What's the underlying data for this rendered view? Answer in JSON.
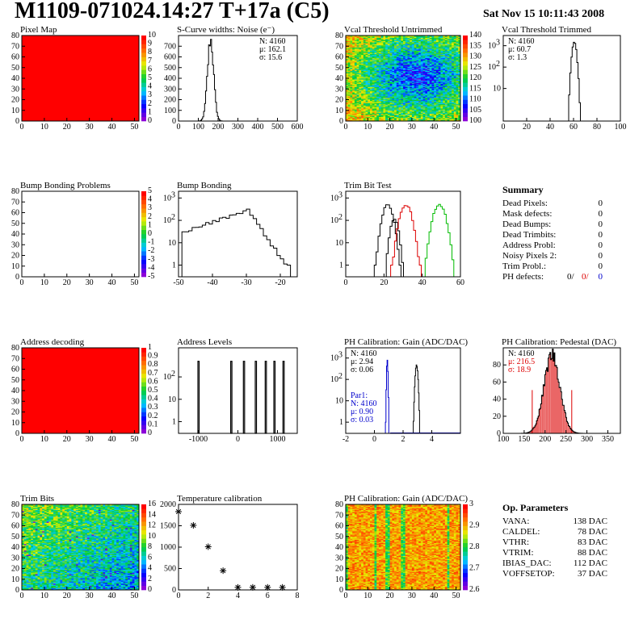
{
  "header": {
    "title": "M1109-071024.14:27 T+17a (C5)",
    "date": "Sat Nov 15 10:11:43 2008"
  },
  "colors": {
    "black": "#000000",
    "red": "#dd0000",
    "green": "#00bb00",
    "blue": "#0000cc"
  },
  "summary": {
    "title": "Summary",
    "rows": [
      {
        "label": "Dead Pixels:",
        "value": "0"
      },
      {
        "label": "Mask defects:",
        "value": "0"
      },
      {
        "label": "Dead Bumps:",
        "value": "0"
      },
      {
        "label": "Dead Trimbits:",
        "value": "0"
      },
      {
        "label": "Address Probl:",
        "value": "0"
      },
      {
        "label": "Noisy Pixels 2:",
        "value": "0"
      },
      {
        "label": "Trim Probl.:",
        "value": "0"
      }
    ],
    "ph_label": "PH defects:",
    "ph_values": [
      "0/",
      "0/",
      "0"
    ]
  },
  "op_params": {
    "title": "Op. Parameters",
    "rows": [
      {
        "label": "VANA:",
        "value": "138 DAC"
      },
      {
        "label": "CALDEL:",
        "value": "78 DAC"
      },
      {
        "label": "VTHR:",
        "value": "83 DAC"
      },
      {
        "label": "VTRIM:",
        "value": "88 DAC"
      },
      {
        "label": "IBIAS_DAC:",
        "value": "112 DAC"
      },
      {
        "label": "VOFFSETOP:",
        "value": "37 DAC"
      }
    ]
  },
  "chart_data": [
    {
      "id": "pixel-map",
      "type": "heatmap",
      "title": "Pixel Map",
      "xlim": [
        0,
        52
      ],
      "ylim": [
        0,
        80
      ],
      "xticks": [
        0,
        10,
        20,
        30,
        40,
        50
      ],
      "yticks": [
        0,
        10,
        20,
        30,
        40,
        50,
        60,
        70,
        80
      ],
      "fill": "uniform",
      "zlim": [
        0,
        10
      ],
      "zticks": [
        0,
        1,
        2,
        3,
        4,
        5,
        6,
        7,
        8,
        9,
        10
      ]
    },
    {
      "id": "scurve",
      "type": "histogram",
      "title": "S-Curve widths: Noise (e⁻)",
      "xlim": [
        0,
        600
      ],
      "ylim": [
        0,
        800
      ],
      "logy": false,
      "xticks": [
        0,
        100,
        200,
        300,
        400,
        500,
        600
      ],
      "yticks": [
        0,
        100,
        200,
        300,
        400,
        500,
        600,
        700
      ],
      "stats": [
        "N: 4160",
        "μ: 162.1",
        "σ: 15.6"
      ],
      "series": [
        {
          "color": "#000000",
          "shape": "gauss",
          "mean": 162,
          "sigma": 15.6,
          "peak": 760,
          "bin": 5
        }
      ]
    },
    {
      "id": "vcal-untrimmed",
      "type": "heatmap",
      "title": "Vcal Threshold Untrimmed",
      "xlim": [
        0,
        52
      ],
      "ylim": [
        0,
        80
      ],
      "xticks": [
        0,
        10,
        20,
        30,
        40,
        50
      ],
      "yticks": [
        0,
        10,
        20,
        30,
        40,
        50,
        60,
        70,
        80
      ],
      "fill": "untrimmed",
      "zlim": [
        100,
        140
      ],
      "zticks": [
        100,
        105,
        110,
        115,
        120,
        125,
        130,
        135,
        140
      ]
    },
    {
      "id": "vcal-trimmed",
      "type": "histogram",
      "title": "Vcal Threshold Trimmed",
      "xlim": [
        0,
        100
      ],
      "ylim": [
        0.3,
        3000
      ],
      "logy": true,
      "xticks": [
        0,
        20,
        40,
        60,
        80,
        100
      ],
      "yticks": [
        10,
        100,
        1000
      ],
      "stats": [
        "N: 4160",
        "μ: 60.7",
        "σ:  1.3"
      ],
      "series": [
        {
          "color": "#000000",
          "shape": "gauss",
          "mean": 60.7,
          "sigma": 1.3,
          "peak": 1400,
          "bin": 1
        }
      ]
    },
    {
      "id": "bump-problems",
      "type": "heatmap",
      "title": "Bump Bonding Problems",
      "xlim": [
        0,
        52
      ],
      "ylim": [
        0,
        80
      ],
      "xticks": [
        0,
        10,
        20,
        30,
        40,
        50
      ],
      "yticks": [
        0,
        10,
        20,
        30,
        40,
        50,
        60,
        70,
        80
      ],
      "fill": "empty",
      "zlim": [
        -5,
        5
      ],
      "zticks": [
        -5,
        -4,
        -3,
        -2,
        -1,
        0,
        1,
        2,
        3,
        4,
        5
      ]
    },
    {
      "id": "bump-bonding",
      "type": "histogram",
      "title": "Bump Bonding",
      "xlim": [
        -50,
        -15
      ],
      "ylim": [
        0.3,
        2000
      ],
      "logy": true,
      "xticks": [
        -50,
        -40,
        -30,
        -20
      ],
      "yticks": [
        1,
        10,
        100,
        1000
      ],
      "series": [
        {
          "color": "#000000",
          "shape": "bump",
          "bin": 1
        }
      ]
    },
    {
      "id": "trim-bit-test",
      "type": "histogram",
      "title": "Trim Bit Test",
      "xlim": [
        0,
        60
      ],
      "ylim": [
        0.3,
        2000
      ],
      "logy": true,
      "xticks": [
        0,
        20,
        40,
        60
      ],
      "yticks": [
        1,
        10,
        100,
        1000
      ],
      "series": [
        {
          "color": "#000000",
          "shape": "gauss",
          "mean": 22,
          "sigma": 1.8,
          "peak": 500,
          "bin": 1
        },
        {
          "color": "#000000",
          "shape": "gauss",
          "mean": 25.5,
          "sigma": 1.4,
          "peak": 120,
          "bin": 1
        },
        {
          "color": "#dd0000",
          "shape": "gauss",
          "mean": 31.5,
          "sigma": 2.0,
          "peak": 500,
          "bin": 1
        },
        {
          "color": "#00bb00",
          "shape": "gauss",
          "mean": 49,
          "sigma": 2.1,
          "peak": 500,
          "bin": 1
        }
      ]
    },
    {
      "id": "address-decoding",
      "type": "heatmap",
      "title": "Address decoding",
      "xlim": [
        0,
        52
      ],
      "ylim": [
        0,
        80
      ],
      "xticks": [
        0,
        10,
        20,
        30,
        40,
        50
      ],
      "yticks": [
        0,
        10,
        20,
        30,
        40,
        50,
        60,
        70,
        80
      ],
      "fill": "uniform",
      "zlim": [
        0,
        1
      ],
      "zticks": [
        0,
        0.1,
        0.2,
        0.3,
        0.4,
        0.5,
        0.6,
        0.7,
        0.8,
        0.9,
        1
      ]
    },
    {
      "id": "address-levels",
      "type": "histogram",
      "title": "Address Levels",
      "xlim": [
        -1500,
        1500
      ],
      "ylim": [
        0.3,
        2000
      ],
      "logy": true,
      "xticks": [
        -1000,
        0,
        1000
      ],
      "yticks": [
        1,
        10,
        100
      ],
      "series": [
        {
          "color": "#000000",
          "shape": "spikes",
          "centers": [
            -1000,
            -170,
            150,
            450,
            700,
            920,
            1150
          ],
          "height": 500,
          "width": 22
        }
      ]
    },
    {
      "id": "ph-gain",
      "type": "histogram",
      "title": "PH Calibration: Gain (ADC/DAC)",
      "xlim": [
        -2,
        6
      ],
      "ylim": [
        0.3,
        3000
      ],
      "logy": true,
      "xticks": [
        -2,
        0,
        2,
        4
      ],
      "yticks": [
        1,
        10,
        100,
        1000
      ],
      "stats": [
        "N: 4160",
        "μ: 2.94",
        "σ: 0.06"
      ],
      "stats2": [
        "Par1:",
        "N: 4160",
        "μ: 0.90",
        "σ: 0.03"
      ],
      "series": [
        {
          "color": "#000000",
          "shape": "gauss",
          "mean": 2.94,
          "sigma": 0.06,
          "peak": 500,
          "bin": 0.04
        },
        {
          "color": "#0000cc",
          "shape": "gauss",
          "mean": 0.9,
          "sigma": 0.03,
          "peak": 800,
          "bin": 0.04
        }
      ]
    },
    {
      "id": "ph-pedestal",
      "type": "histogram",
      "title": "PH Calibration: Pedestal (DAC)",
      "xlim": [
        100,
        380
      ],
      "ylim": [
        0,
        100
      ],
      "logy": false,
      "xticks": [
        100,
        150,
        200,
        250,
        300,
        350
      ],
      "yticks": [
        0,
        20,
        40,
        60,
        80
      ],
      "stats": [
        "N: 4160",
        "μ: 216.5",
        "σ: 18.9"
      ],
      "series": [
        {
          "color": "#000000",
          "shape": "gauss",
          "mean": 216.5,
          "sigma": 18.9,
          "peak": 92,
          "bin": 2,
          "hatch": true
        }
      ]
    },
    {
      "id": "trim-bits",
      "type": "heatmap",
      "title": "Trim Bits",
      "xlim": [
        0,
        52
      ],
      "ylim": [
        0,
        80
      ],
      "xticks": [
        0,
        10,
        20,
        30,
        40,
        50
      ],
      "yticks": [
        0,
        10,
        20,
        30,
        40,
        50,
        60,
        70,
        80
      ],
      "fill": "trimbits",
      "zlim": [
        0,
        16
      ],
      "zticks": [
        0,
        2,
        4,
        6,
        8,
        10,
        12,
        14,
        16
      ]
    },
    {
      "id": "temperature",
      "type": "scatter",
      "title": "Temperature calibration",
      "xlim": [
        0,
        8
      ],
      "ylim": [
        0,
        2000
      ],
      "xticks": [
        0,
        2,
        4,
        6,
        8
      ],
      "yticks": [
        0,
        500,
        1000,
        1500,
        2000
      ],
      "x": [
        0,
        1,
        2,
        3,
        4,
        5,
        6,
        7
      ],
      "y": [
        1830,
        1510,
        1010,
        450,
        60,
        60,
        60,
        60
      ]
    },
    {
      "id": "ph-gain-map",
      "type": "heatmap",
      "title": "PH Calibration: Gain (ADC/DAC)",
      "xlim": [
        0,
        52
      ],
      "ylim": [
        0,
        80
      ],
      "xticks": [
        0,
        10,
        20,
        30,
        40,
        50
      ],
      "yticks": [
        0,
        10,
        20,
        30,
        40,
        50,
        60,
        70,
        80
      ],
      "fill": "gainmap",
      "zlim": [
        2.6,
        3.0
      ],
      "zticks": [
        2.6,
        2.7,
        2.8,
        2.9,
        3.0
      ]
    }
  ]
}
